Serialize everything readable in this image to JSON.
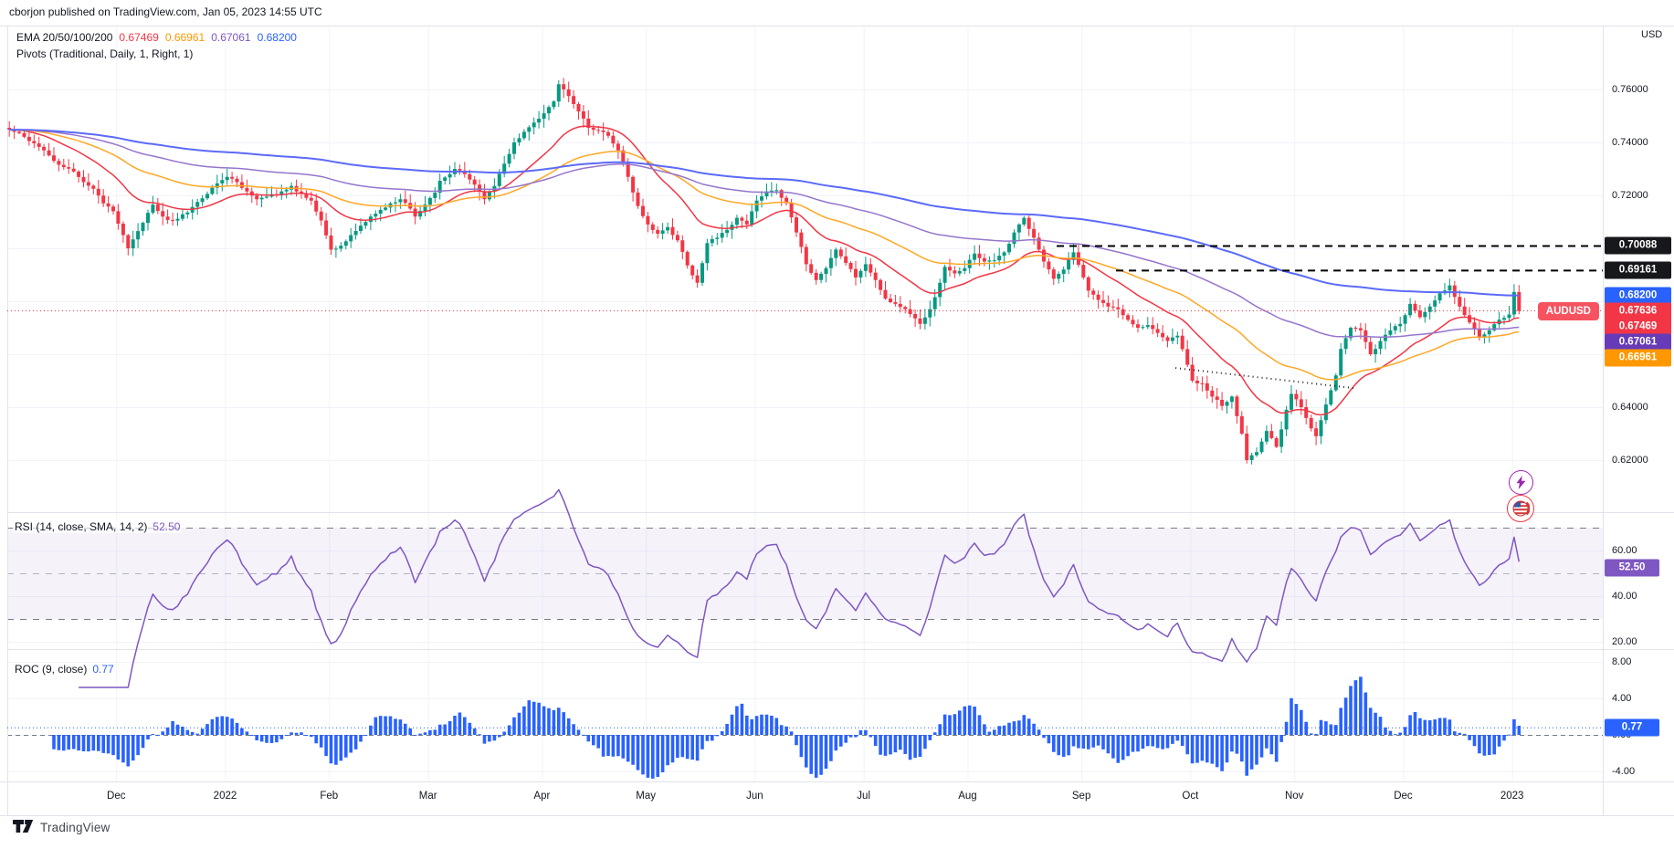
{
  "header": {
    "published_line": "cborjon published on TradingView.com, Jan 05, 2023 14:55 UTC"
  },
  "legend": {
    "ema_label": "EMA 20/50/100/200",
    "ema_values": [
      {
        "text": "0.67469",
        "color": "#f23645"
      },
      {
        "text": "0.66961",
        "color": "#ff9800"
      },
      {
        "text": "0.67061",
        "color": "#7e57c2"
      },
      {
        "text": "0.68200",
        "color": "#2962ff"
      }
    ],
    "pivots_label": "Pivots (Traditional, Daily, 1, Right, 1)"
  },
  "price_axis": {
    "unit": "USD",
    "visible_ticks": [
      0.76,
      0.74,
      0.72,
      0.64,
      0.62
    ],
    "grid_prices": [
      0.76,
      0.74,
      0.72,
      0.7,
      0.68,
      0.66,
      0.64,
      0.62
    ],
    "badges": [
      {
        "text": "0.70088",
        "price": 0.70088,
        "bg": "#17181b"
      },
      {
        "text": "0.69161",
        "price": 0.69161,
        "bg": "#17181b"
      },
      {
        "text": "0.68200",
        "price": 0.682,
        "bg": "#2962ff"
      },
      {
        "text": "0.67636",
        "price": 0.67636,
        "bg": "#f23645",
        "pill": "AUDUSD"
      },
      {
        "text": "0.67469",
        "price": 0.67469,
        "bg": "#f23645"
      },
      {
        "text": "0.67061",
        "price": 0.67061,
        "bg": "#673ab7"
      },
      {
        "text": "0.66961",
        "price": 0.66961,
        "bg": "#ff9800"
      }
    ]
  },
  "rsi_pane": {
    "title": "RSI (14, close, SMA, 14, 2)",
    "value": "52.50",
    "value_num": 52.5,
    "color": "#7e57c2",
    "band_fill": "rgba(126,87,194,0.08)",
    "levels": [
      70,
      50,
      30
    ],
    "ticks": [
      60,
      40,
      20
    ],
    "range": [
      16.8,
      76.8
    ]
  },
  "roc_pane": {
    "title": "ROC (9, close)",
    "value": "0.77",
    "value_num": 0.77,
    "color": "#2962ff",
    "ticks": [
      8,
      4,
      0,
      -4
    ],
    "range": [
      -4.9,
      9.4
    ]
  },
  "time_axis": {
    "months": [
      {
        "label": "Dec",
        "day": 22
      },
      {
        "label": "2022",
        "day": 44
      },
      {
        "label": "Feb",
        "day": 65
      },
      {
        "label": "Mar",
        "day": 85
      },
      {
        "label": "Apr",
        "day": 108
      },
      {
        "label": "May",
        "day": 129
      },
      {
        "label": "Jun",
        "day": 151
      },
      {
        "label": "Jul",
        "day": 173
      },
      {
        "label": "Aug",
        "day": 194
      },
      {
        "label": "Sep",
        "day": 217
      },
      {
        "label": "Oct",
        "day": 239
      },
      {
        "label": "Nov",
        "day": 260
      },
      {
        "label": "Dec",
        "day": 282
      },
      {
        "label": "2023",
        "day": 304
      }
    ]
  },
  "icons": {
    "lightning": {
      "name": "lightning-icon",
      "color": "#9c27b0"
    },
    "us_flag": {
      "name": "us-flag-icon",
      "ring": "#f23645",
      "canton": "#3555a8",
      "stripe": "#d03a3a"
    }
  },
  "footer": {
    "brand": "TradingView"
  },
  "chart_data": {
    "type": "candlestick",
    "symbol": "AUDUSD",
    "timeframe": "Daily",
    "title": "AUDUSD daily with EMA 20/50/100/200, Pivots, RSI(14), ROC(9)",
    "last_close": 0.67636,
    "first_open": 0.7455,
    "days_total": 306,
    "price_range_visible": [
      0.6003,
      0.7841
    ],
    "candle_up_color": "#089981",
    "candle_down_color": "#f23645",
    "close_keypoints": [
      [
        0,
        0.7448
      ],
      [
        2,
        0.7435
      ],
      [
        4,
        0.7405
      ],
      [
        7,
        0.737
      ],
      [
        9,
        0.733
      ],
      [
        13,
        0.729
      ],
      [
        15,
        0.725
      ],
      [
        17,
        0.7225
      ],
      [
        19,
        0.717
      ],
      [
        21,
        0.714
      ],
      [
        23,
        0.705
      ],
      [
        24,
        0.7
      ],
      [
        26,
        0.7065
      ],
      [
        29,
        0.7165
      ],
      [
        31,
        0.712
      ],
      [
        33,
        0.7105
      ],
      [
        36,
        0.7135
      ],
      [
        38,
        0.7175
      ],
      [
        40,
        0.7205
      ],
      [
        42,
        0.7245
      ],
      [
        44,
        0.727
      ],
      [
        46,
        0.725
      ],
      [
        48,
        0.7215
      ],
      [
        50,
        0.7185
      ],
      [
        52,
        0.7195
      ],
      [
        55,
        0.7215
      ],
      [
        57,
        0.7235
      ],
      [
        59,
        0.7205
      ],
      [
        61,
        0.718
      ],
      [
        63,
        0.7105
      ],
      [
        65,
        0.6995
      ],
      [
        67,
        0.701
      ],
      [
        69,
        0.705
      ],
      [
        71,
        0.7085
      ],
      [
        73,
        0.712
      ],
      [
        75,
        0.7145
      ],
      [
        77,
        0.717
      ],
      [
        79,
        0.7185
      ],
      [
        81,
        0.715
      ],
      [
        82,
        0.712
      ],
      [
        84,
        0.7165
      ],
      [
        86,
        0.721
      ],
      [
        87,
        0.7255
      ],
      [
        89,
        0.728
      ],
      [
        90,
        0.73
      ],
      [
        92,
        0.728
      ],
      [
        93,
        0.726
      ],
      [
        95,
        0.7215
      ],
      [
        96,
        0.7185
      ],
      [
        98,
        0.7235
      ],
      [
        100,
        0.732
      ],
      [
        102,
        0.74
      ],
      [
        104,
        0.744
      ],
      [
        106,
        0.7475
      ],
      [
        108,
        0.751
      ],
      [
        110,
        0.7555
      ],
      [
        111,
        0.762
      ],
      [
        113,
        0.7575
      ],
      [
        114,
        0.7545
      ],
      [
        116,
        0.749
      ],
      [
        117,
        0.7455
      ],
      [
        119,
        0.7445
      ],
      [
        121,
        0.7425
      ],
      [
        123,
        0.737
      ],
      [
        125,
        0.727
      ],
      [
        127,
        0.716
      ],
      [
        129,
        0.709
      ],
      [
        131,
        0.7055
      ],
      [
        133,
        0.708
      ],
      [
        135,
        0.703
      ],
      [
        137,
        0.6935
      ],
      [
        139,
        0.687
      ],
      [
        141,
        0.702
      ],
      [
        143,
        0.704
      ],
      [
        145,
        0.707
      ],
      [
        147,
        0.7115
      ],
      [
        149,
        0.709
      ],
      [
        151,
        0.718
      ],
      [
        153,
        0.7215
      ],
      [
        155,
        0.722
      ],
      [
        157,
        0.717
      ],
      [
        159,
        0.706
      ],
      [
        161,
        0.694
      ],
      [
        163,
        0.688
      ],
      [
        165,
        0.6925
      ],
      [
        167,
        0.6995
      ],
      [
        169,
        0.6945
      ],
      [
        171,
        0.689
      ],
      [
        173,
        0.694
      ],
      [
        175,
        0.688
      ],
      [
        177,
        0.681
      ],
      [
        179,
        0.679
      ],
      [
        181,
        0.677
      ],
      [
        183,
        0.6735
      ],
      [
        184,
        0.6715
      ],
      [
        186,
        0.677
      ],
      [
        188,
        0.687
      ],
      [
        189,
        0.693
      ],
      [
        191,
        0.6905
      ],
      [
        193,
        0.6925
      ],
      [
        195,
        0.698
      ],
      [
        197,
        0.695
      ],
      [
        199,
        0.6955
      ],
      [
        201,
        0.6985
      ],
      [
        203,
        0.706
      ],
      [
        204,
        0.709
      ],
      [
        205,
        0.7115
      ],
      [
        207,
        0.704
      ],
      [
        209,
        0.695
      ],
      [
        211,
        0.6885
      ],
      [
        213,
        0.692
      ],
      [
        215,
        0.6985
      ],
      [
        217,
        0.689
      ],
      [
        218,
        0.684
      ],
      [
        220,
        0.6805
      ],
      [
        222,
        0.678
      ],
      [
        224,
        0.677
      ],
      [
        226,
        0.673
      ],
      [
        228,
        0.67
      ],
      [
        230,
        0.671
      ],
      [
        232,
        0.668
      ],
      [
        234,
        0.665
      ],
      [
        236,
        0.667
      ],
      [
        238,
        0.656
      ],
      [
        239,
        0.65
      ],
      [
        241,
        0.649
      ],
      [
        243,
        0.644
      ],
      [
        245,
        0.6405
      ],
      [
        247,
        0.644
      ],
      [
        249,
        0.63
      ],
      [
        250,
        0.62
      ],
      [
        252,
        0.623
      ],
      [
        254,
        0.631
      ],
      [
        256,
        0.625
      ],
      [
        258,
        0.639
      ],
      [
        259,
        0.645
      ],
      [
        261,
        0.64
      ],
      [
        263,
        0.632
      ],
      [
        264,
        0.629
      ],
      [
        266,
        0.641
      ],
      [
        268,
        0.652
      ],
      [
        269,
        0.662
      ],
      [
        271,
        0.67
      ],
      [
        273,
        0.669
      ],
      [
        275,
        0.66
      ],
      [
        277,
        0.665
      ],
      [
        279,
        0.669
      ],
      [
        281,
        0.6715
      ],
      [
        283,
        0.679
      ],
      [
        285,
        0.674
      ],
      [
        287,
        0.678
      ],
      [
        289,
        0.683
      ],
      [
        291,
        0.686
      ],
      [
        293,
        0.678
      ],
      [
        295,
        0.672
      ],
      [
        297,
        0.6665
      ],
      [
        299,
        0.669
      ],
      [
        301,
        0.673
      ],
      [
        303,
        0.675
      ],
      [
        304,
        0.6835
      ],
      [
        305,
        0.67636
      ]
    ],
    "emas": [
      {
        "period": 20,
        "color": "#f23645",
        "last_value": 0.67469,
        "width": 1.5
      },
      {
        "period": 50,
        "color": "#ffa726",
        "last_value": 0.66961,
        "width": 1.5
      },
      {
        "period": 100,
        "color": "#9575cd",
        "last_value": 0.67061,
        "width": 1.5
      },
      {
        "period": 200,
        "color": "#5b6af9",
        "last_value": 0.682,
        "width": 2
      }
    ],
    "annotations": {
      "pivot_lines": [
        {
          "price": 0.70088,
          "from_day": 212,
          "color": "#000000"
        },
        {
          "price": 0.69161,
          "from_day": 224,
          "color": "#000000"
        }
      ],
      "last_price_line": {
        "price": 0.67636,
        "color": "#f23645"
      },
      "trendline": {
        "from_day": 236,
        "from_price": 0.6548,
        "to_day": 272,
        "to_price": 0.6472,
        "color": "#1e222d"
      },
      "roc_value_line": {
        "value": 0.77,
        "color": "#2962ff"
      }
    },
    "grid_on": true
  }
}
